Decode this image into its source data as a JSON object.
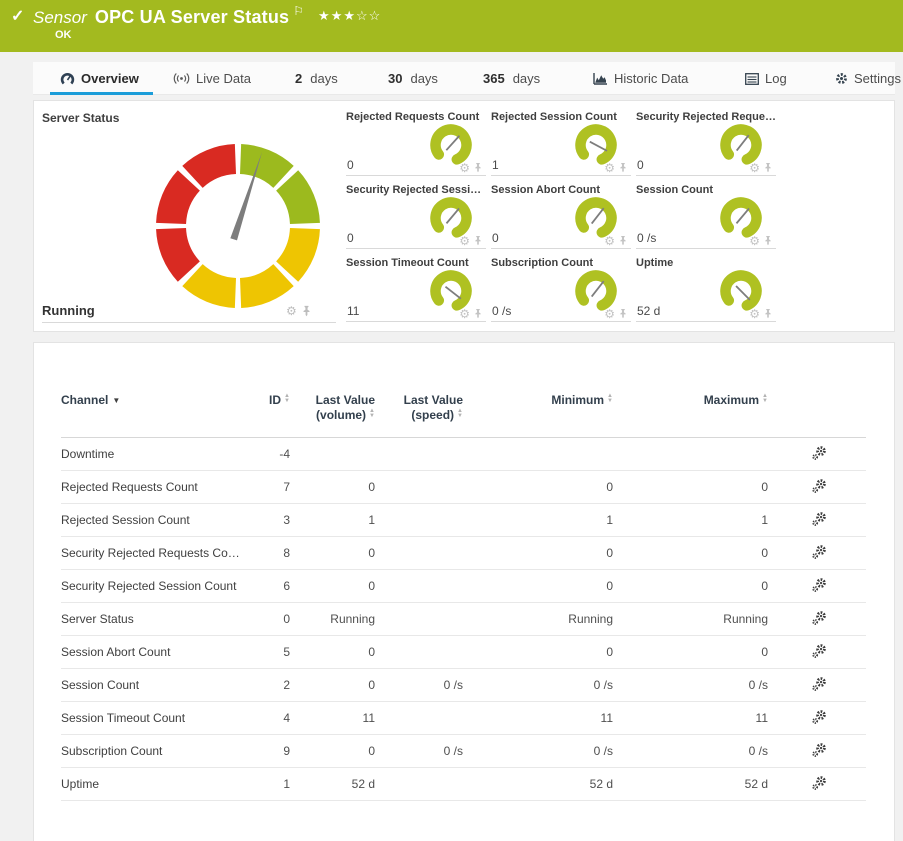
{
  "colors": {
    "header_green": "#a3ba1f",
    "accent_blue": "#1b9dd9",
    "gauge_green": "#9cba1e",
    "gauge_yellow": "#eec502",
    "gauge_red": "#d92a22",
    "arc_green": "#afc122",
    "needle_gray": "#7d7d7d",
    "icon_gray": "#bdbdbd",
    "icon_dark": "#35434f"
  },
  "header": {
    "check": "✓",
    "kind": "Sensor",
    "title": "OPC UA Server Status",
    "flag": "⚐",
    "stars_filled": "★★★",
    "stars_empty": "☆☆",
    "status": "OK"
  },
  "tabs": [
    {
      "label": "Overview",
      "active": true
    },
    {
      "label": "Live Data"
    },
    {
      "prefix": "2",
      "label": "days"
    },
    {
      "prefix": "30",
      "label": "days"
    },
    {
      "prefix": "365",
      "label": "days"
    },
    {
      "label": "Historic Data"
    },
    {
      "label": "Log"
    },
    {
      "label": "Settings"
    }
  ],
  "gauge_panel": {
    "main_gauge": {
      "title": "Server Status",
      "value": "Running",
      "needle_deg": 18,
      "segments": [
        "green",
        "green",
        "yellow",
        "yellow",
        "yellow",
        "red",
        "red",
        "red"
      ]
    },
    "mini_gauges": [
      {
        "title": "Rejected Requests Count",
        "value": "0",
        "needle_deg": 42
      },
      {
        "title": "Rejected Session Count",
        "value": "1",
        "needle_deg": 118
      },
      {
        "title": "Security Rejected Requests Count",
        "value": "0",
        "needle_deg": 38
      },
      {
        "title": "Security Rejected Session Count",
        "value": "0",
        "needle_deg": 40
      },
      {
        "title": "Session Abort Count",
        "value": "0",
        "needle_deg": 38
      },
      {
        "title": "Session Count",
        "value": "0 /s",
        "needle_deg": 40
      },
      {
        "title": "Session Timeout Count",
        "value": "11",
        "needle_deg": 128
      },
      {
        "title": "Subscription Count",
        "value": "0 /s",
        "needle_deg": 38
      },
      {
        "title": "Uptime",
        "value": "52 d",
        "needle_deg": 135
      }
    ]
  },
  "table": {
    "headers": {
      "channel": "Channel",
      "id": "ID",
      "last_volume": "Last Value (volume)",
      "last_speed": "Last Value (speed)",
      "min": "Minimum",
      "max": "Maximum"
    },
    "rows": [
      {
        "channel": "Downtime",
        "id": "-4",
        "last_volume": "",
        "last_speed": "",
        "min": "",
        "max": ""
      },
      {
        "channel": "Rejected Requests Count",
        "id": "7",
        "last_volume": "0",
        "last_speed": "",
        "min": "0",
        "max": "0"
      },
      {
        "channel": "Rejected Session Count",
        "id": "3",
        "last_volume": "1",
        "last_speed": "",
        "min": "1",
        "max": "1"
      },
      {
        "channel": "Security Rejected Requests Count",
        "id": "8",
        "last_volume": "0",
        "last_speed": "",
        "min": "0",
        "max": "0"
      },
      {
        "channel": "Security Rejected Session Count",
        "id": "6",
        "last_volume": "0",
        "last_speed": "",
        "min": "0",
        "max": "0"
      },
      {
        "channel": "Server Status",
        "id": "0",
        "last_volume": "Running",
        "last_speed": "",
        "min": "Running",
        "max": "Running"
      },
      {
        "channel": "Session Abort Count",
        "id": "5",
        "last_volume": "0",
        "last_speed": "",
        "min": "0",
        "max": "0"
      },
      {
        "channel": "Session Count",
        "id": "2",
        "last_volume": "0",
        "last_speed": "0 /s",
        "min": "0 /s",
        "max": "0 /s"
      },
      {
        "channel": "Session Timeout Count",
        "id": "4",
        "last_volume": "11",
        "last_speed": "",
        "min": "11",
        "max": "11"
      },
      {
        "channel": "Subscription Count",
        "id": "9",
        "last_volume": "0",
        "last_speed": "0 /s",
        "min": "0 /s",
        "max": "0 /s"
      },
      {
        "channel": "Uptime",
        "id": "1",
        "last_volume": "52 d",
        "last_speed": "",
        "min": "52 d",
        "max": "52 d"
      }
    ]
  }
}
